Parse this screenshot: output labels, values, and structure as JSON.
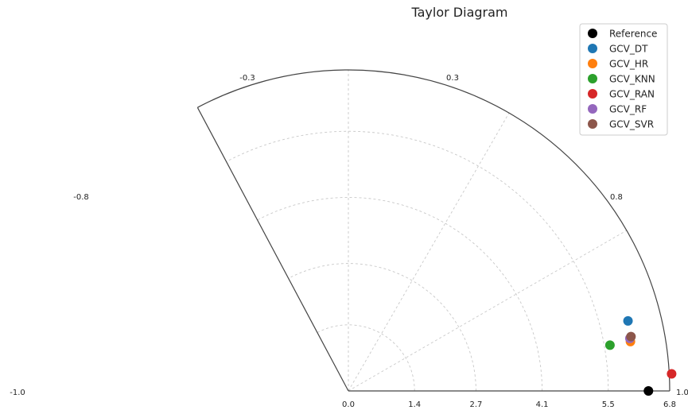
{
  "chart_data": {
    "type": "scatter",
    "title": "Taylor Diagram",
    "radial_ticks": [
      "0.0",
      "1.4",
      "2.7",
      "4.1",
      "5.5",
      "6.8"
    ],
    "radial_tick_values": [
      0,
      1.4,
      2.7,
      4.1,
      5.5,
      6.8
    ],
    "r_max": 6.8,
    "correlation_labels": [
      {
        "label": "1.0",
        "value": 1.0
      },
      {
        "label": "0.8",
        "value": 0.8
      },
      {
        "label": "0.3",
        "value": 0.3
      },
      {
        "label": "-0.3",
        "value": -0.3
      },
      {
        "label": "-0.8",
        "value": -0.8
      },
      {
        "label": "-1.0",
        "value": -1.0
      }
    ],
    "angular_range_deg": [
      0,
      118
    ],
    "grid": true,
    "legend_position": "top-right",
    "series": [
      {
        "name": "Reference",
        "color": "#000000",
        "std": 6.35,
        "corr": 1.0
      },
      {
        "name": "GCV_DT",
        "color": "#1f77b4",
        "std": 6.1,
        "corr": 0.97
      },
      {
        "name": "GCV_HR",
        "color": "#ff7f0e",
        "std": 6.06,
        "corr": 0.985
      },
      {
        "name": "GCV_KNN",
        "color": "#2ca02c",
        "std": 5.62,
        "corr": 0.985
      },
      {
        "name": "GCV_RAN",
        "color": "#d62728",
        "std": 6.85,
        "corr": 0.9986
      },
      {
        "name": "GCV_RF",
        "color": "#9467bd",
        "std": 6.06,
        "corr": 0.983
      },
      {
        "name": "GCV_SVR",
        "color": "#8c564b",
        "std": 6.09,
        "corr": 0.982
      }
    ]
  }
}
